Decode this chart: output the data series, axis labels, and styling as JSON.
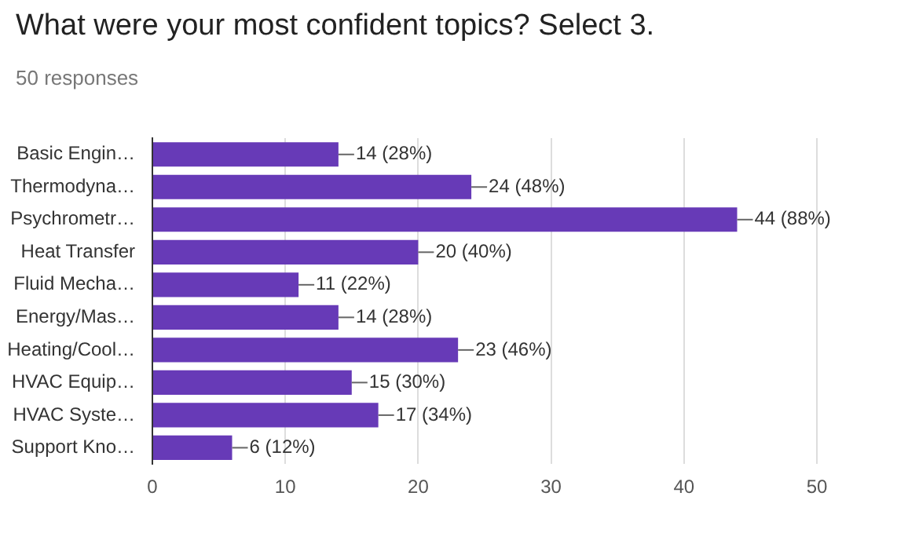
{
  "chart_data": {
    "type": "bar",
    "orientation": "horizontal",
    "title": "What were your most confident topics? Select 3.",
    "subtitle": "50 responses",
    "categories": [
      "Basic Engin…",
      "Thermodyna…",
      "Psychrometr…",
      "Heat Transfer",
      "Fluid Mecha…",
      "Energy/Mas…",
      "Heating/Cool…",
      "HVAC Equip…",
      "HVAC Syste…",
      "Support Kno…"
    ],
    "values": [
      14,
      24,
      44,
      20,
      11,
      14,
      23,
      15,
      17,
      6
    ],
    "value_labels": [
      "14 (28%)",
      "24 (48%)",
      "44 (88%)",
      "20 (40%)",
      "11 (22%)",
      "14 (28%)",
      "23 (46%)",
      "15 (30%)",
      "17 (34%)",
      "6 (12%)"
    ],
    "color": "#673ab7",
    "xlim": [
      0,
      50
    ],
    "xticks": [
      0,
      10,
      20,
      30,
      40,
      50
    ],
    "grid": "x",
    "legend": false
  }
}
